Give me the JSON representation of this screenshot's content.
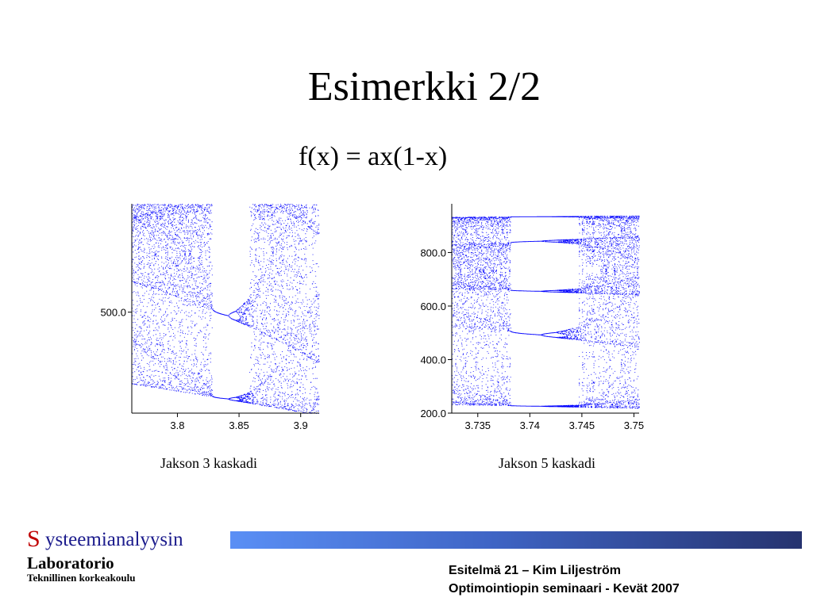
{
  "slide": {
    "title": "Esimerkki 2/2",
    "formula": "f(x) = ax(1-x)"
  },
  "chart_data": [
    {
      "type": "scatter",
      "title": "",
      "caption": "Jakson 3 kaskadi",
      "xlabel": "",
      "ylabel": "",
      "xlim": [
        3.763,
        3.915
      ],
      "ylim": [
        90,
        940
      ],
      "x_ticks": [
        3.8,
        3.85,
        3.9
      ],
      "x_tick_labels": [
        "3.8",
        "3.85",
        "3.9"
      ],
      "y_ticks": [
        500
      ],
      "y_tick_labels": [
        "500.0"
      ],
      "series": [
        {
          "map": "logistic",
          "y_scale": 1000,
          "points_per_parameter": 32,
          "color": "#0000ff",
          "windows": [
            {
              "from": 3.828,
              "to": 3.857
            }
          ]
        }
      ],
      "grid": false
    },
    {
      "type": "scatter",
      "title": "",
      "caption": "Jakson 5 kaskadi",
      "xlabel": "",
      "ylabel": "",
      "xlim": [
        3.7325,
        3.7505
      ],
      "ylim": [
        200,
        982
      ],
      "x_ticks": [
        3.735,
        3.74,
        3.745,
        3.75
      ],
      "x_tick_labels": [
        "3.735",
        "3.74",
        "3.745",
        "3.75"
      ],
      "y_ticks": [
        200,
        400,
        600,
        800
      ],
      "y_tick_labels": [
        "200.0",
        "400.0",
        "600.0",
        "800.0"
      ],
      "series": [
        {
          "map": "logistic",
          "y_scale": 1000,
          "points_per_parameter": 40,
          "color": "#0000ff",
          "windows": [
            {
              "from": 3.7387,
              "to": 3.7438
            }
          ]
        }
      ],
      "grid": false
    }
  ],
  "footer": {
    "logo_initial": "S",
    "logo_rest": "ysteemianalyysin",
    "lab_name": "Laboratorio",
    "school": "Teknillinen korkeakoulu",
    "line1": "Esitelmä 21 – Kim Liljeström",
    "line2": "Optimointiopin seminaari - Kevät 2007"
  },
  "colors": {
    "points": "#0000ff",
    "logo_initial": "#c00000",
    "logo_word": "#1a1a8c"
  }
}
